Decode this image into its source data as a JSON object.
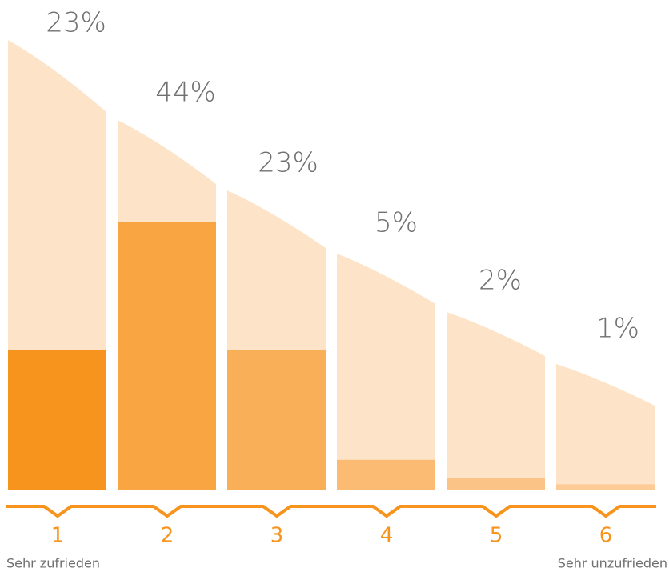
{
  "chart_data": {
    "type": "bar",
    "categories": [
      "1",
      "2",
      "3",
      "4",
      "5",
      "6"
    ],
    "values": [
      23,
      44,
      23,
      5,
      2,
      1
    ],
    "value_labels": [
      "23%",
      "44%",
      "23%",
      "5%",
      "2%",
      "1%"
    ],
    "colors": [
      "#f7941d",
      "#f9a541",
      "#f9ae58",
      "#fbbb73",
      "#fcc387",
      "#fdcb95"
    ],
    "annotations": [
      "Sehr zufrieden",
      "Sehr unzufrieden"
    ]
  }
}
